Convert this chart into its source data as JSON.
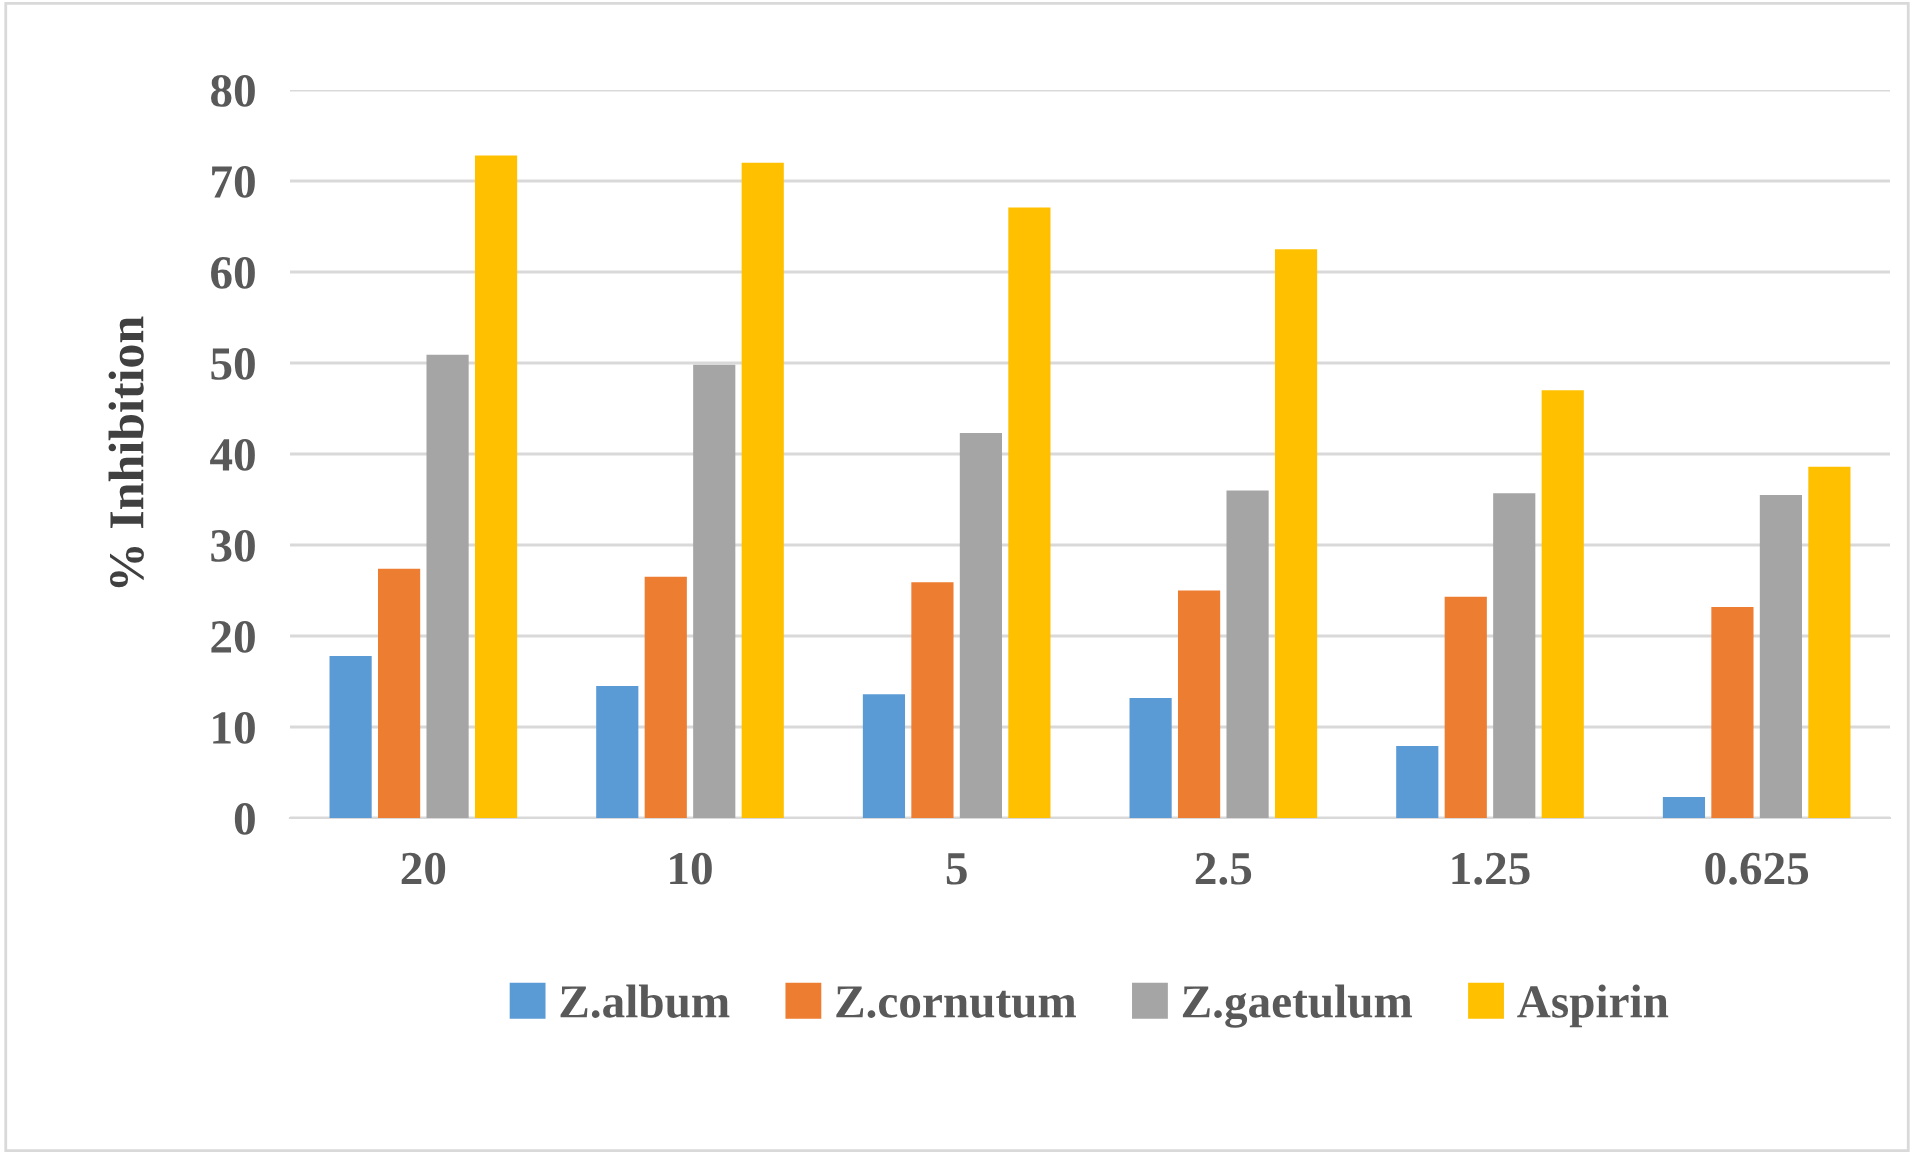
{
  "chart_data": {
    "type": "bar",
    "ylabel": "% Inhibition",
    "categories": [
      "20",
      "10",
      "5",
      "2.5",
      "1.25",
      "0.625"
    ],
    "series": [
      {
        "name": "Z.album",
        "color": "#5b9bd5",
        "values": [
          17.8,
          14.5,
          13.6,
          13.2,
          7.9,
          2.3
        ]
      },
      {
        "name": "Z.cornutum",
        "color": "#ed7d31",
        "values": [
          27.4,
          26.5,
          25.9,
          25.0,
          24.3,
          23.2
        ]
      },
      {
        "name": "Z.gaetulum",
        "color": "#a5a5a5",
        "values": [
          50.9,
          49.8,
          42.3,
          36.0,
          35.7,
          35.5
        ]
      },
      {
        "name": "Aspirin",
        "color": "#ffc000",
        "values": [
          72.8,
          72.0,
          67.1,
          62.5,
          47.0,
          38.6
        ]
      }
    ],
    "ylim": [
      0,
      80
    ],
    "yticks": [
      0,
      10,
      20,
      30,
      40,
      50,
      60,
      70,
      80
    ],
    "grid": "y",
    "legend": "bottom"
  }
}
